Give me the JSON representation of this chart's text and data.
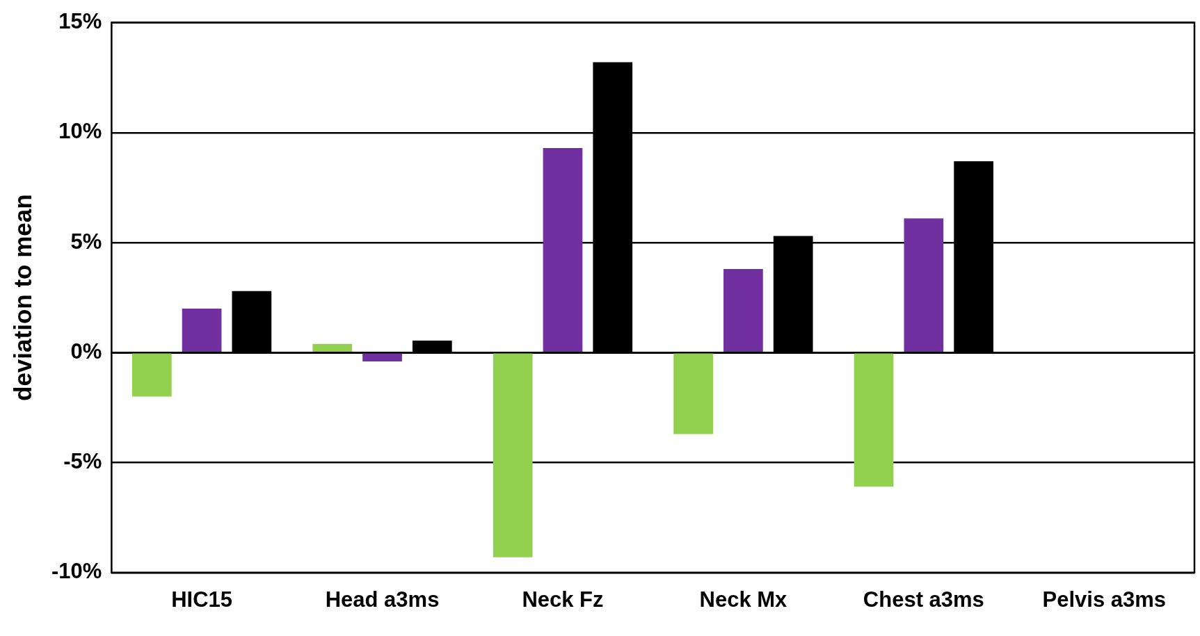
{
  "chart_data": {
    "type": "bar",
    "ylabel": "deviation to mean",
    "categories": [
      "HIC15",
      "Head a3ms",
      "Neck Fz",
      "Neck Mx",
      "Chest a3ms",
      "Pelvis a3ms"
    ],
    "series": [
      {
        "color": "#92d050",
        "values": [
          -2.0,
          0.4,
          -9.3,
          -3.7,
          -6.1,
          null
        ]
      },
      {
        "color": "#7030a0",
        "values": [
          2.0,
          -0.4,
          9.3,
          3.8,
          6.1,
          null
        ]
      },
      {
        "color": "#000000",
        "values": [
          2.8,
          0.55,
          13.2,
          5.3,
          8.7,
          null
        ]
      }
    ],
    "ylim": [
      -10,
      15
    ],
    "yticks": [
      {
        "value": -10,
        "label": "-10%"
      },
      {
        "value": -5,
        "label": "-5%"
      },
      {
        "value": 0,
        "label": "0%"
      },
      {
        "value": 5,
        "label": "5%"
      },
      {
        "value": 10,
        "label": "10%"
      },
      {
        "value": 15,
        "label": "15%"
      }
    ],
    "grid": "y",
    "legend": false
  }
}
